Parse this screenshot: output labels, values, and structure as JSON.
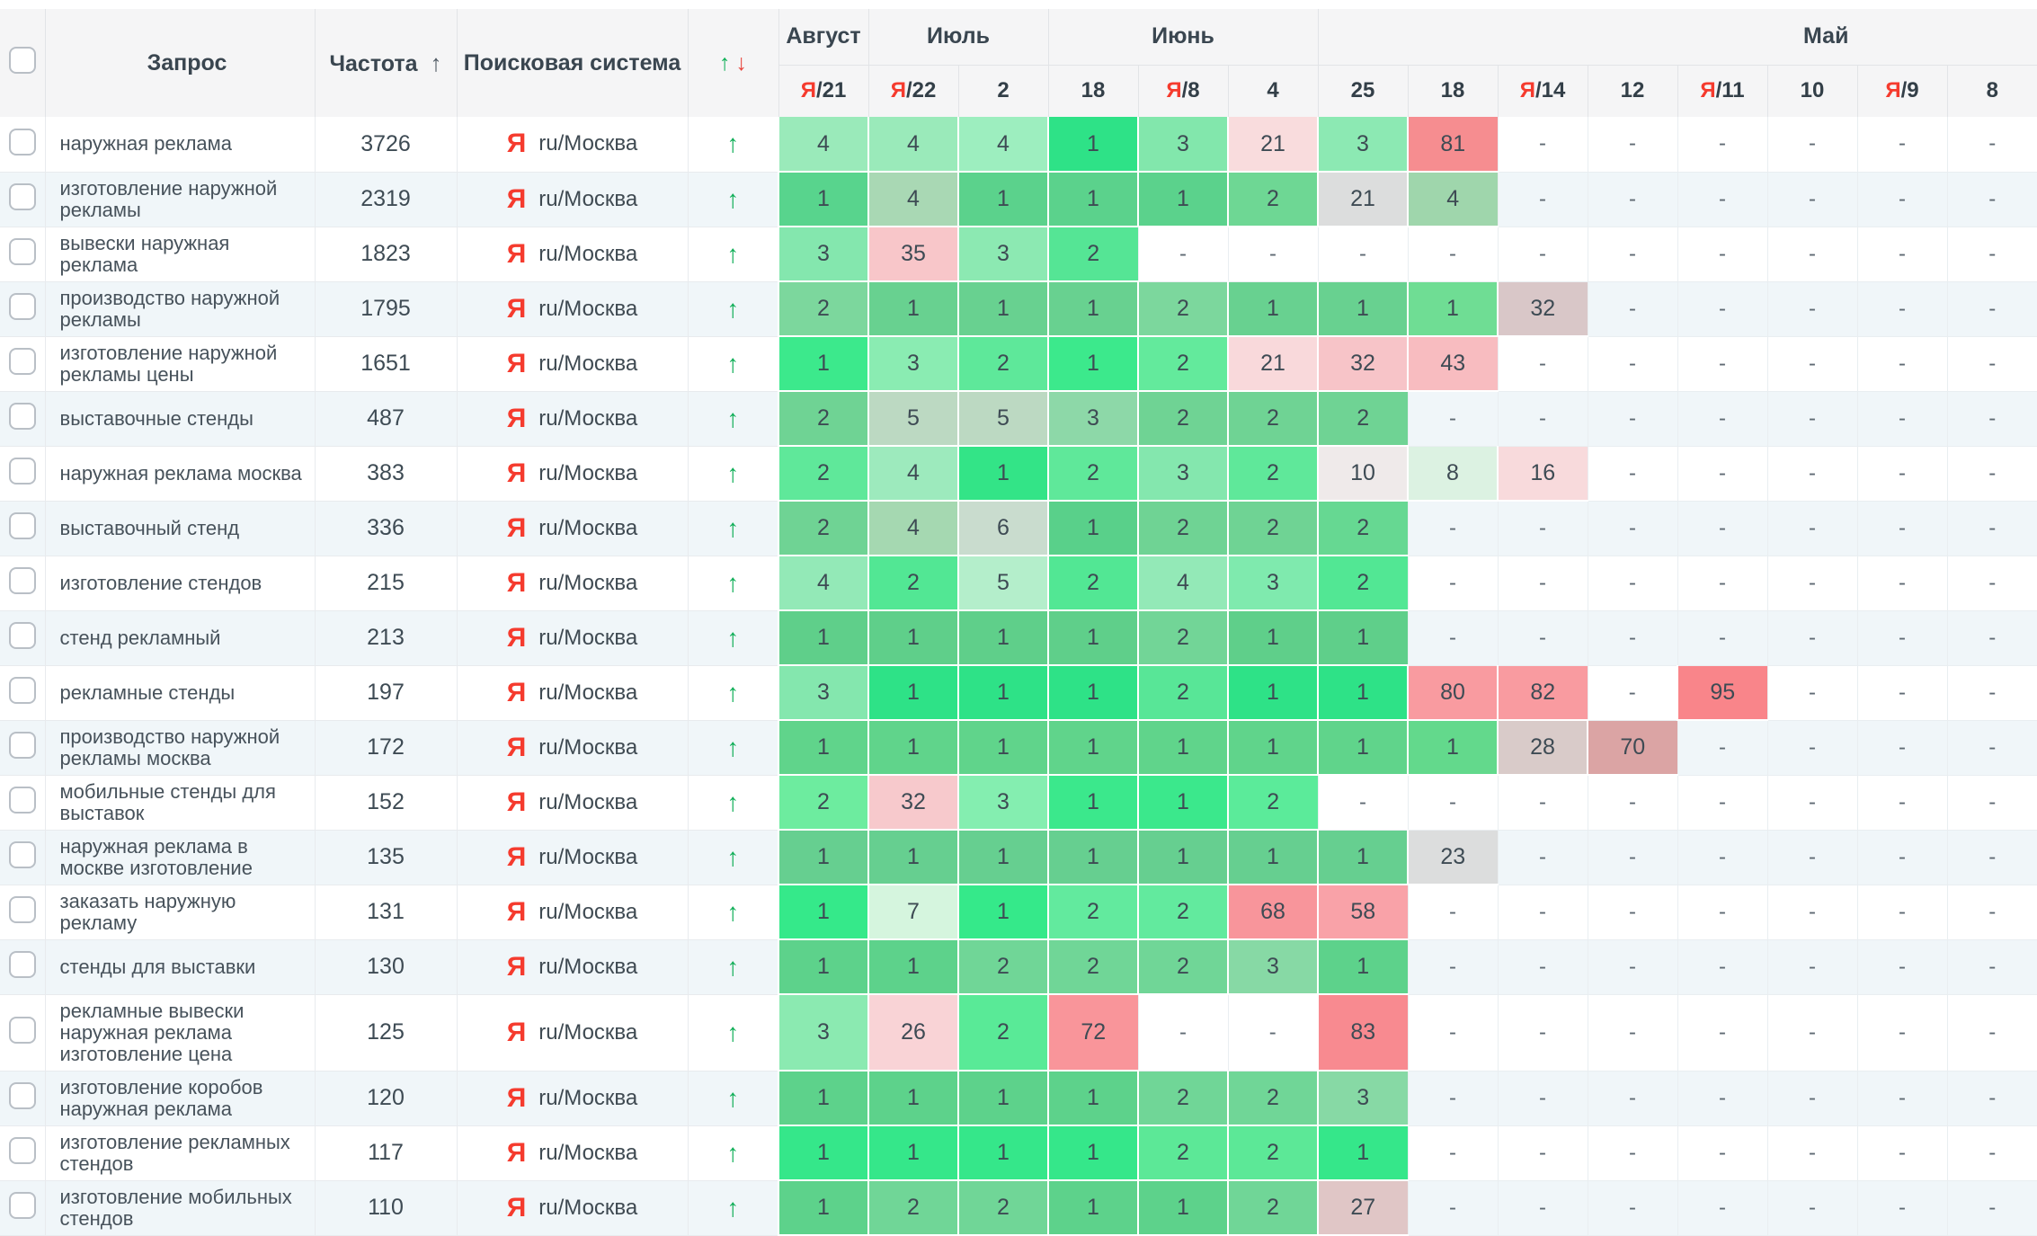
{
  "colors": {
    "accent_green": "#12b159",
    "accent_red": "#e8453c",
    "yandex_red": "#f53b2e",
    "header_bg": "#f5f5f6",
    "stripe_bg": "#f0f6f9"
  },
  "header": {
    "query": "Запрос",
    "frequency": "Частота",
    "freq_sort_icon": "↑",
    "engine": "Поисковая система",
    "trend_up": "↑",
    "trend_down": "↓",
    "months": [
      {
        "label": "Август",
        "span": 1
      },
      {
        "label": "Июль",
        "span": 2
      },
      {
        "label": "Июнь",
        "span": 3
      },
      {
        "label": "Май",
        "span": 8
      }
    ],
    "dates": [
      {
        "yandex": true,
        "label": "21"
      },
      {
        "yandex": true,
        "label": "22"
      },
      {
        "yandex": false,
        "label": "2"
      },
      {
        "yandex": false,
        "label": "18"
      },
      {
        "yandex": true,
        "label": "8"
      },
      {
        "yandex": false,
        "label": "4"
      },
      {
        "yandex": false,
        "label": "25"
      },
      {
        "yandex": false,
        "label": "18"
      },
      {
        "yandex": true,
        "label": "14"
      },
      {
        "yandex": false,
        "label": "12"
      },
      {
        "yandex": true,
        "label": "11"
      },
      {
        "yandex": false,
        "label": "10"
      },
      {
        "yandex": true,
        "label": "9"
      },
      {
        "yandex": false,
        "label": "8"
      }
    ]
  },
  "engine_value": {
    "icon": "Я",
    "label": "ru/Москва"
  },
  "row_trend": "↑",
  "dash": "-",
  "rows": [
    {
      "query": "наружная реклама",
      "freq": "3726",
      "cells": [
        [
          "4",
          "#9aeaba"
        ],
        [
          "4",
          "#9aeaba"
        ],
        [
          "4",
          "#9deebf"
        ],
        [
          "1",
          "#2ee287"
        ],
        [
          "3",
          "#82e7ac"
        ],
        [
          "21",
          "#f9dcdd"
        ],
        [
          "3",
          "#8ce9b3"
        ],
        [
          "81",
          "#f68d90"
        ],
        [
          "-",
          ""
        ],
        [
          "-",
          ""
        ],
        [
          "-",
          ""
        ],
        [
          "-",
          ""
        ],
        [
          "-",
          ""
        ],
        [
          "-",
          ""
        ]
      ]
    },
    {
      "query": "изготовление наружной рекламы",
      "freq": "2319",
      "cells": [
        [
          "1",
          "#58d48d"
        ],
        [
          "4",
          "#a9d8b4"
        ],
        [
          "1",
          "#5bd28c"
        ],
        [
          "1",
          "#5bd28c"
        ],
        [
          "1",
          "#5bd28c"
        ],
        [
          "2",
          "#6ed794"
        ],
        [
          "21",
          "#dcdddd"
        ],
        [
          "4",
          "#9fd6ac"
        ],
        [
          "-",
          ""
        ],
        [
          "-",
          ""
        ],
        [
          "-",
          ""
        ],
        [
          "-",
          ""
        ],
        [
          "-",
          ""
        ],
        [
          "-",
          ""
        ]
      ]
    },
    {
      "query": "вывески наружная реклама",
      "freq": "1823",
      "cells": [
        [
          "3",
          "#84e7ae"
        ],
        [
          "35",
          "#f8c6c9"
        ],
        [
          "3",
          "#8ce9b2"
        ],
        [
          "2",
          "#55e595"
        ],
        [
          "-",
          ""
        ],
        [
          "-",
          ""
        ],
        [
          "-",
          ""
        ],
        [
          "-",
          ""
        ],
        [
          "-",
          ""
        ],
        [
          "-",
          ""
        ],
        [
          "-",
          ""
        ],
        [
          "-",
          ""
        ],
        [
          "-",
          ""
        ],
        [
          "-",
          ""
        ]
      ]
    },
    {
      "query": "производство наружной рекламы",
      "freq": "1795",
      "cells": [
        [
          "2",
          "#7cd79d"
        ],
        [
          "1",
          "#68d190"
        ],
        [
          "1",
          "#68d190"
        ],
        [
          "1",
          "#68d190"
        ],
        [
          "2",
          "#7cd79d"
        ],
        [
          "1",
          "#68d190"
        ],
        [
          "1",
          "#68d190"
        ],
        [
          "1",
          "#6fdd94"
        ],
        [
          "32",
          "#d9c7c8"
        ],
        [
          "-",
          ""
        ],
        [
          "-",
          ""
        ],
        [
          "-",
          ""
        ],
        [
          "-",
          ""
        ],
        [
          "-",
          ""
        ]
      ]
    },
    {
      "query": "изготовление наружной рекламы цены",
      "freq": "1651",
      "cells": [
        [
          "1",
          "#3ce98c"
        ],
        [
          "3",
          "#8aecb2"
        ],
        [
          "2",
          "#5ee89a"
        ],
        [
          "1",
          "#3ce98c"
        ],
        [
          "2",
          "#63ea9c"
        ],
        [
          "21",
          "#f9d9db"
        ],
        [
          "32",
          "#f7c4c8"
        ],
        [
          "43",
          "#f8bcc0"
        ],
        [
          "-",
          ""
        ],
        [
          "-",
          ""
        ],
        [
          "-",
          ""
        ],
        [
          "-",
          ""
        ],
        [
          "-",
          ""
        ],
        [
          "-",
          ""
        ]
      ]
    },
    {
      "query": "выставочные стенды",
      "freq": "487",
      "cells": [
        [
          "2",
          "#6fd394"
        ],
        [
          "5",
          "#bcd9c2"
        ],
        [
          "5",
          "#bcd9c2"
        ],
        [
          "3",
          "#8dd8a8"
        ],
        [
          "2",
          "#6fd394"
        ],
        [
          "2",
          "#6fd394"
        ],
        [
          "2",
          "#6fd394"
        ],
        [
          "-",
          ""
        ],
        [
          "-",
          ""
        ],
        [
          "-",
          ""
        ],
        [
          "-",
          ""
        ],
        [
          "-",
          ""
        ],
        [
          "-",
          ""
        ],
        [
          "-",
          ""
        ]
      ]
    },
    {
      "query": "наружная реклама москва",
      "freq": "383",
      "cells": [
        [
          "2",
          "#5fe89a"
        ],
        [
          "4",
          "#9deabd"
        ],
        [
          "1",
          "#33e487"
        ],
        [
          "2",
          "#5fe89a"
        ],
        [
          "3",
          "#84e7ae"
        ],
        [
          "2",
          "#5fe89a"
        ],
        [
          "10",
          "#efeaea"
        ],
        [
          "8",
          "#dcf2e2"
        ],
        [
          "16",
          "#f8dadc"
        ],
        [
          "-",
          ""
        ],
        [
          "-",
          ""
        ],
        [
          "-",
          ""
        ],
        [
          "-",
          ""
        ],
        [
          "-",
          ""
        ]
      ]
    },
    {
      "query": "выставочный стенд",
      "freq": "336",
      "cells": [
        [
          "2",
          "#6fd394"
        ],
        [
          "4",
          "#a5d8b1"
        ],
        [
          "6",
          "#c9dcce"
        ],
        [
          "1",
          "#59d08a"
        ],
        [
          "2",
          "#6fd394"
        ],
        [
          "2",
          "#6fd394"
        ],
        [
          "2",
          "#66d892"
        ],
        [
          "-",
          ""
        ],
        [
          "-",
          ""
        ],
        [
          "-",
          ""
        ],
        [
          "-",
          ""
        ],
        [
          "-",
          ""
        ],
        [
          "-",
          ""
        ],
        [
          "-",
          ""
        ]
      ]
    },
    {
      "query": "изготовление стендов",
      "freq": "215",
      "cells": [
        [
          "4",
          "#93e9b7"
        ],
        [
          "2",
          "#52e794"
        ],
        [
          "5",
          "#b4eecb"
        ],
        [
          "2",
          "#52e794"
        ],
        [
          "4",
          "#93e9b7"
        ],
        [
          "3",
          "#7feaae"
        ],
        [
          "2",
          "#52e794"
        ],
        [
          "-",
          ""
        ],
        [
          "-",
          ""
        ],
        [
          "-",
          ""
        ],
        [
          "-",
          ""
        ],
        [
          "-",
          ""
        ],
        [
          "-",
          ""
        ],
        [
          "-",
          ""
        ]
      ]
    },
    {
      "query": "стенд рекламный",
      "freq": "213",
      "cells": [
        [
          "1",
          "#5fcf8a"
        ],
        [
          "1",
          "#5fcf8a"
        ],
        [
          "1",
          "#5fcf8a"
        ],
        [
          "1",
          "#5fcf8a"
        ],
        [
          "2",
          "#72d597"
        ],
        [
          "1",
          "#5fcf8a"
        ],
        [
          "1",
          "#5fcf8a"
        ],
        [
          "-",
          ""
        ],
        [
          "-",
          ""
        ],
        [
          "-",
          ""
        ],
        [
          "-",
          ""
        ],
        [
          "-",
          ""
        ],
        [
          "-",
          ""
        ],
        [
          "-",
          ""
        ]
      ]
    },
    {
      "query": "рекламные стенды",
      "freq": "197",
      "cells": [
        [
          "3",
          "#84e7ae"
        ],
        [
          "1",
          "#2ee287"
        ],
        [
          "1",
          "#2ee287"
        ],
        [
          "1",
          "#2ee287"
        ],
        [
          "2",
          "#58e697"
        ],
        [
          "1",
          "#2ee287"
        ],
        [
          "1",
          "#2ee287"
        ],
        [
          "80",
          "#f99ba0"
        ],
        [
          "82",
          "#f99ba0"
        ],
        [
          "-",
          ""
        ],
        [
          "95",
          "#f9858a"
        ],
        [
          "-",
          ""
        ],
        [
          "-",
          ""
        ],
        [
          "-",
          ""
        ]
      ]
    },
    {
      "query": "производство наружной рекламы москва",
      "freq": "172",
      "cells": [
        [
          "1",
          "#60d48b"
        ],
        [
          "1",
          "#60d48b"
        ],
        [
          "1",
          "#60d48b"
        ],
        [
          "1",
          "#60d48b"
        ],
        [
          "1",
          "#60d48b"
        ],
        [
          "1",
          "#60d48b"
        ],
        [
          "1",
          "#60d48b"
        ],
        [
          "1",
          "#63d98c"
        ],
        [
          "28",
          "#d9cbc9"
        ],
        [
          "70",
          "#dba4a4"
        ],
        [
          "-",
          ""
        ],
        [
          "-",
          ""
        ],
        [
          "-",
          ""
        ],
        [
          "-",
          ""
        ]
      ]
    },
    {
      "query": "мобильные стенды для выставок",
      "freq": "152",
      "cells": [
        [
          "2",
          "#6dec9f"
        ],
        [
          "32",
          "#f7c9cc"
        ],
        [
          "3",
          "#84eeb0"
        ],
        [
          "1",
          "#3be88c"
        ],
        [
          "1",
          "#3be88c"
        ],
        [
          "2",
          "#5beb9a"
        ],
        [
          "-",
          ""
        ],
        [
          "-",
          ""
        ],
        [
          "-",
          ""
        ],
        [
          "-",
          ""
        ],
        [
          "-",
          ""
        ],
        [
          "-",
          ""
        ],
        [
          "-",
          ""
        ],
        [
          "-",
          ""
        ]
      ]
    },
    {
      "query": "наружная реклама в москве изготовление",
      "freq": "135",
      "cells": [
        [
          "1",
          "#66cf90"
        ],
        [
          "1",
          "#66cf90"
        ],
        [
          "1",
          "#66cf90"
        ],
        [
          "1",
          "#66cf90"
        ],
        [
          "1",
          "#66cf90"
        ],
        [
          "1",
          "#66cf90"
        ],
        [
          "1",
          "#66cf90"
        ],
        [
          "23",
          "#dcdddd"
        ],
        [
          "-",
          ""
        ],
        [
          "-",
          ""
        ],
        [
          "-",
          ""
        ],
        [
          "-",
          ""
        ],
        [
          "-",
          ""
        ],
        [
          "-",
          ""
        ]
      ]
    },
    {
      "query": "заказать наружную рекламу",
      "freq": "131",
      "cells": [
        [
          "1",
          "#35e98a"
        ],
        [
          "7",
          "#d5f5de"
        ],
        [
          "1",
          "#35e98a"
        ],
        [
          "2",
          "#62ea9e"
        ],
        [
          "2",
          "#62ea9e"
        ],
        [
          "68",
          "#f8959b"
        ],
        [
          "58",
          "#f9a2a8"
        ],
        [
          "-",
          ""
        ],
        [
          "-",
          ""
        ],
        [
          "-",
          ""
        ],
        [
          "-",
          ""
        ],
        [
          "-",
          ""
        ],
        [
          "-",
          ""
        ],
        [
          "-",
          ""
        ]
      ]
    },
    {
      "query": "стенды для выставки",
      "freq": "130",
      "cells": [
        [
          "1",
          "#5dd28b"
        ],
        [
          "1",
          "#5dd28b"
        ],
        [
          "2",
          "#70d697"
        ],
        [
          "2",
          "#70d697"
        ],
        [
          "2",
          "#70d697"
        ],
        [
          "3",
          "#87d9a5"
        ],
        [
          "1",
          "#5dd28b"
        ],
        [
          "-",
          ""
        ],
        [
          "-",
          ""
        ],
        [
          "-",
          ""
        ],
        [
          "-",
          ""
        ],
        [
          "-",
          ""
        ],
        [
          "-",
          ""
        ],
        [
          "-",
          ""
        ]
      ]
    },
    {
      "query": "рекламные вывески наружная реклама изготовление цена",
      "freq": "125",
      "cells": [
        [
          "3",
          "#8beab1"
        ],
        [
          "26",
          "#f9d3d6"
        ],
        [
          "2",
          "#59ea97"
        ],
        [
          "72",
          "#f9959a"
        ],
        [
          "-",
          ""
        ],
        [
          "-",
          ""
        ],
        [
          "83",
          "#f88a90"
        ],
        [
          "-",
          ""
        ],
        [
          "-",
          ""
        ],
        [
          "-",
          ""
        ],
        [
          "-",
          ""
        ],
        [
          "-",
          ""
        ],
        [
          "-",
          ""
        ],
        [
          "-",
          ""
        ]
      ]
    },
    {
      "query": "изготовление коробов наружная реклама",
      "freq": "120",
      "cells": [
        [
          "1",
          "#5dd28b"
        ],
        [
          "1",
          "#5dd28b"
        ],
        [
          "1",
          "#5dd28b"
        ],
        [
          "1",
          "#5dd28b"
        ],
        [
          "2",
          "#70d697"
        ],
        [
          "2",
          "#70d697"
        ],
        [
          "3",
          "#87d9a5"
        ],
        [
          "-",
          ""
        ],
        [
          "-",
          ""
        ],
        [
          "-",
          ""
        ],
        [
          "-",
          ""
        ],
        [
          "-",
          ""
        ],
        [
          "-",
          ""
        ],
        [
          "-",
          ""
        ]
      ]
    },
    {
      "query": "изготовление рекламных стендов",
      "freq": "117",
      "cells": [
        [
          "1",
          "#35e78a"
        ],
        [
          "1",
          "#35e78a"
        ],
        [
          "1",
          "#35e78a"
        ],
        [
          "1",
          "#35e78a"
        ],
        [
          "2",
          "#5ce897"
        ],
        [
          "2",
          "#5ce897"
        ],
        [
          "1",
          "#35e78a"
        ],
        [
          "-",
          ""
        ],
        [
          "-",
          ""
        ],
        [
          "-",
          ""
        ],
        [
          "-",
          ""
        ],
        [
          "-",
          ""
        ],
        [
          "-",
          ""
        ],
        [
          "-",
          ""
        ]
      ]
    },
    {
      "query": "изготовление мобильных стендов",
      "freq": "110",
      "cells": [
        [
          "1",
          "#5dd28b"
        ],
        [
          "2",
          "#70d697"
        ],
        [
          "2",
          "#70d697"
        ],
        [
          "1",
          "#5dd28b"
        ],
        [
          "1",
          "#5dd28b"
        ],
        [
          "2",
          "#70d697"
        ],
        [
          "27",
          "#e0c6c6"
        ],
        [
          "-",
          ""
        ],
        [
          "-",
          ""
        ],
        [
          "-",
          ""
        ],
        [
          "-",
          ""
        ],
        [
          "-",
          ""
        ],
        [
          "-",
          ""
        ],
        [
          "-",
          ""
        ]
      ]
    }
  ]
}
